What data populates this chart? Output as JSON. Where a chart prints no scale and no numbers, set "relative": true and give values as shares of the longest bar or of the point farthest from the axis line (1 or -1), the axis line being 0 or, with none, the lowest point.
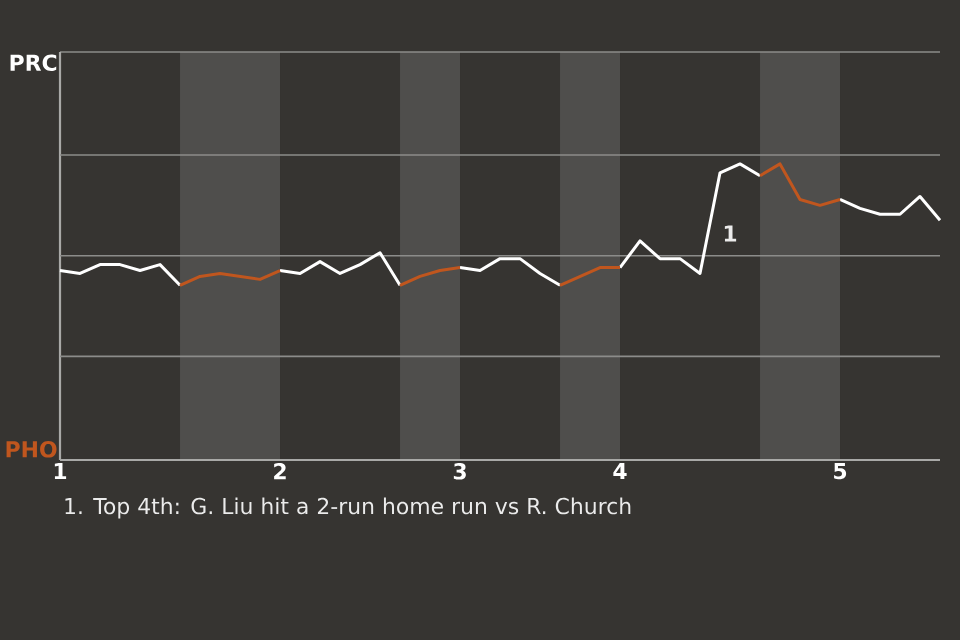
{
  "chart_data": {
    "type": "line",
    "categories": [
      "1",
      null,
      null,
      null,
      null,
      null,
      null,
      null,
      null,
      null,
      null,
      "2",
      null,
      null,
      null,
      null,
      null,
      null,
      null,
      null,
      "3",
      null,
      null,
      null,
      null,
      null,
      null,
      null,
      "4",
      null,
      null,
      null,
      null,
      null,
      null,
      null,
      null,
      null,
      null,
      "5",
      null,
      null,
      null,
      null,
      null
    ],
    "relative": true,
    "series": [
      {
        "color": "#ffffff",
        "values": [
          0.64,
          0.63,
          0.66,
          0.66,
          0.64,
          0.66,
          0.59,
          null,
          null,
          null,
          null,
          0.64,
          0.63,
          0.67,
          0.63,
          0.66,
          0.7,
          0.59,
          null,
          null,
          0.65,
          0.64,
          0.68,
          0.68,
          0.63,
          0.59,
          null,
          null,
          0.65,
          0.74,
          0.68,
          0.68,
          0.63,
          0.97,
          1,
          0.96,
          null,
          null,
          null,
          0.88,
          0.85,
          0.83,
          0.83,
          0.89,
          0.81
        ]
      },
      {
        "color": "#c0561e",
        "values": [
          null,
          null,
          null,
          null,
          null,
          null,
          0.59,
          0.62,
          0.63,
          0.62,
          0.61,
          0.64,
          null,
          null,
          null,
          null,
          null,
          0.59,
          0.62,
          0.64,
          0.65,
          null,
          null,
          null,
          null,
          0.59,
          0.62,
          0.65,
          0.65,
          null,
          null,
          null,
          null,
          null,
          null,
          0.96,
          1.0,
          0.88,
          0.86,
          0.88,
          null,
          null,
          null,
          null,
          null
        ]
      }
    ],
    "ref_lines": [
      {
        "axis": "y",
        "value": 0.35,
        "color": "#8c8c8a"
      },
      {
        "axis": "y",
        "value": 0.69,
        "color": "#8c8c8a"
      },
      {
        "axis": "y",
        "value": 1.03,
        "color": "#8c8c8a"
      }
    ],
    "annotations": [
      "PRC",
      "PHO",
      "1",
      "1. Top 4th: G. Liu hit a 2-run home run vs R. Church"
    ],
    "marker": "none",
    "line_style": "solid"
  }
}
